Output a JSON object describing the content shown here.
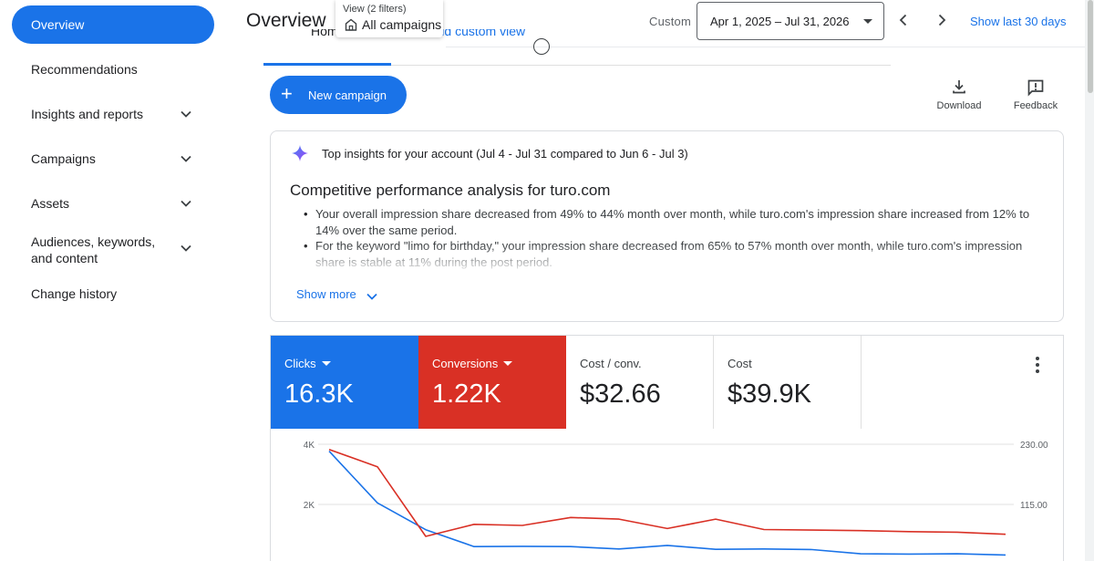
{
  "sidebar": {
    "items": [
      {
        "label": "Overview",
        "active": true
      },
      {
        "label": "Recommendations"
      },
      {
        "label": "Insights and reports",
        "expandable": true
      },
      {
        "label": "Campaigns",
        "expandable": true
      },
      {
        "label": "Assets",
        "expandable": true
      },
      {
        "label": "Audiences, keywords, and content",
        "expandable": true
      },
      {
        "label": "Change history"
      }
    ]
  },
  "header": {
    "title": "Overview",
    "view_filter_label": "View (2 filters)",
    "view_filter_value": "All campaigns",
    "date_mode": "Custom",
    "date_range": "Apr 1, 2025 – Jul 31, 2026",
    "show_last": "Show last 30 days"
  },
  "tabs": {
    "home": "Home",
    "add_custom_view": "+ Add custom view"
  },
  "actions": {
    "new_campaign": "New campaign",
    "download": "Download",
    "feedback": "Feedback"
  },
  "insights": {
    "header": "Top insights for your account (Jul 4 - Jul 31 compared to Jun 6 - Jul 3)",
    "title": "Competitive performance analysis for turo.com",
    "bullets": [
      "Your overall impression share decreased from 49% to 44% month over month, while turo.com's impression share increased from 12% to 14% over the same period.",
      "For the keyword \"limo for birthday,\" your impression share decreased from 65% to 57% month over month, while turo.com's impression share is stable at 11% during the post period."
    ],
    "show_more": "Show more"
  },
  "metrics": [
    {
      "label": "Clicks",
      "value": "16.3K",
      "color": "#1a73e8",
      "selected": true
    },
    {
      "label": "Conversions",
      "value": "1.22K",
      "color": "#d93025",
      "selected": true
    },
    {
      "label": "Cost / conv.",
      "value": "$32.66",
      "selected": false
    },
    {
      "label": "Cost",
      "value": "$39.9K",
      "selected": false
    }
  ],
  "chart_data": {
    "type": "line",
    "x": [
      1,
      2,
      3,
      4,
      5,
      6,
      7,
      8,
      9,
      10,
      11,
      12,
      13,
      14,
      15
    ],
    "left_axis": {
      "ticks": [
        "4K",
        "2K"
      ],
      "tick_values": [
        4000,
        2000
      ],
      "ylim": [
        0,
        4000
      ]
    },
    "right_axis": {
      "ticks": [
        "230.00",
        "115.00"
      ],
      "tick_values": [
        230,
        115
      ],
      "ylim": [
        0,
        230
      ]
    },
    "series": [
      {
        "name": "Clicks",
        "axis": "left",
        "color": "#1a73e8",
        "values": [
          3770,
          2050,
          1160,
          600,
          610,
          600,
          520,
          640,
          510,
          520,
          500,
          360,
          350,
          360,
          320
        ]
      },
      {
        "name": "Conversions",
        "axis": "right",
        "color": "#d93025",
        "values": [
          220,
          187,
          54,
          77,
          75,
          90,
          87,
          69,
          87,
          67,
          66,
          65,
          63,
          62,
          58
        ]
      }
    ],
    "grid": true
  }
}
